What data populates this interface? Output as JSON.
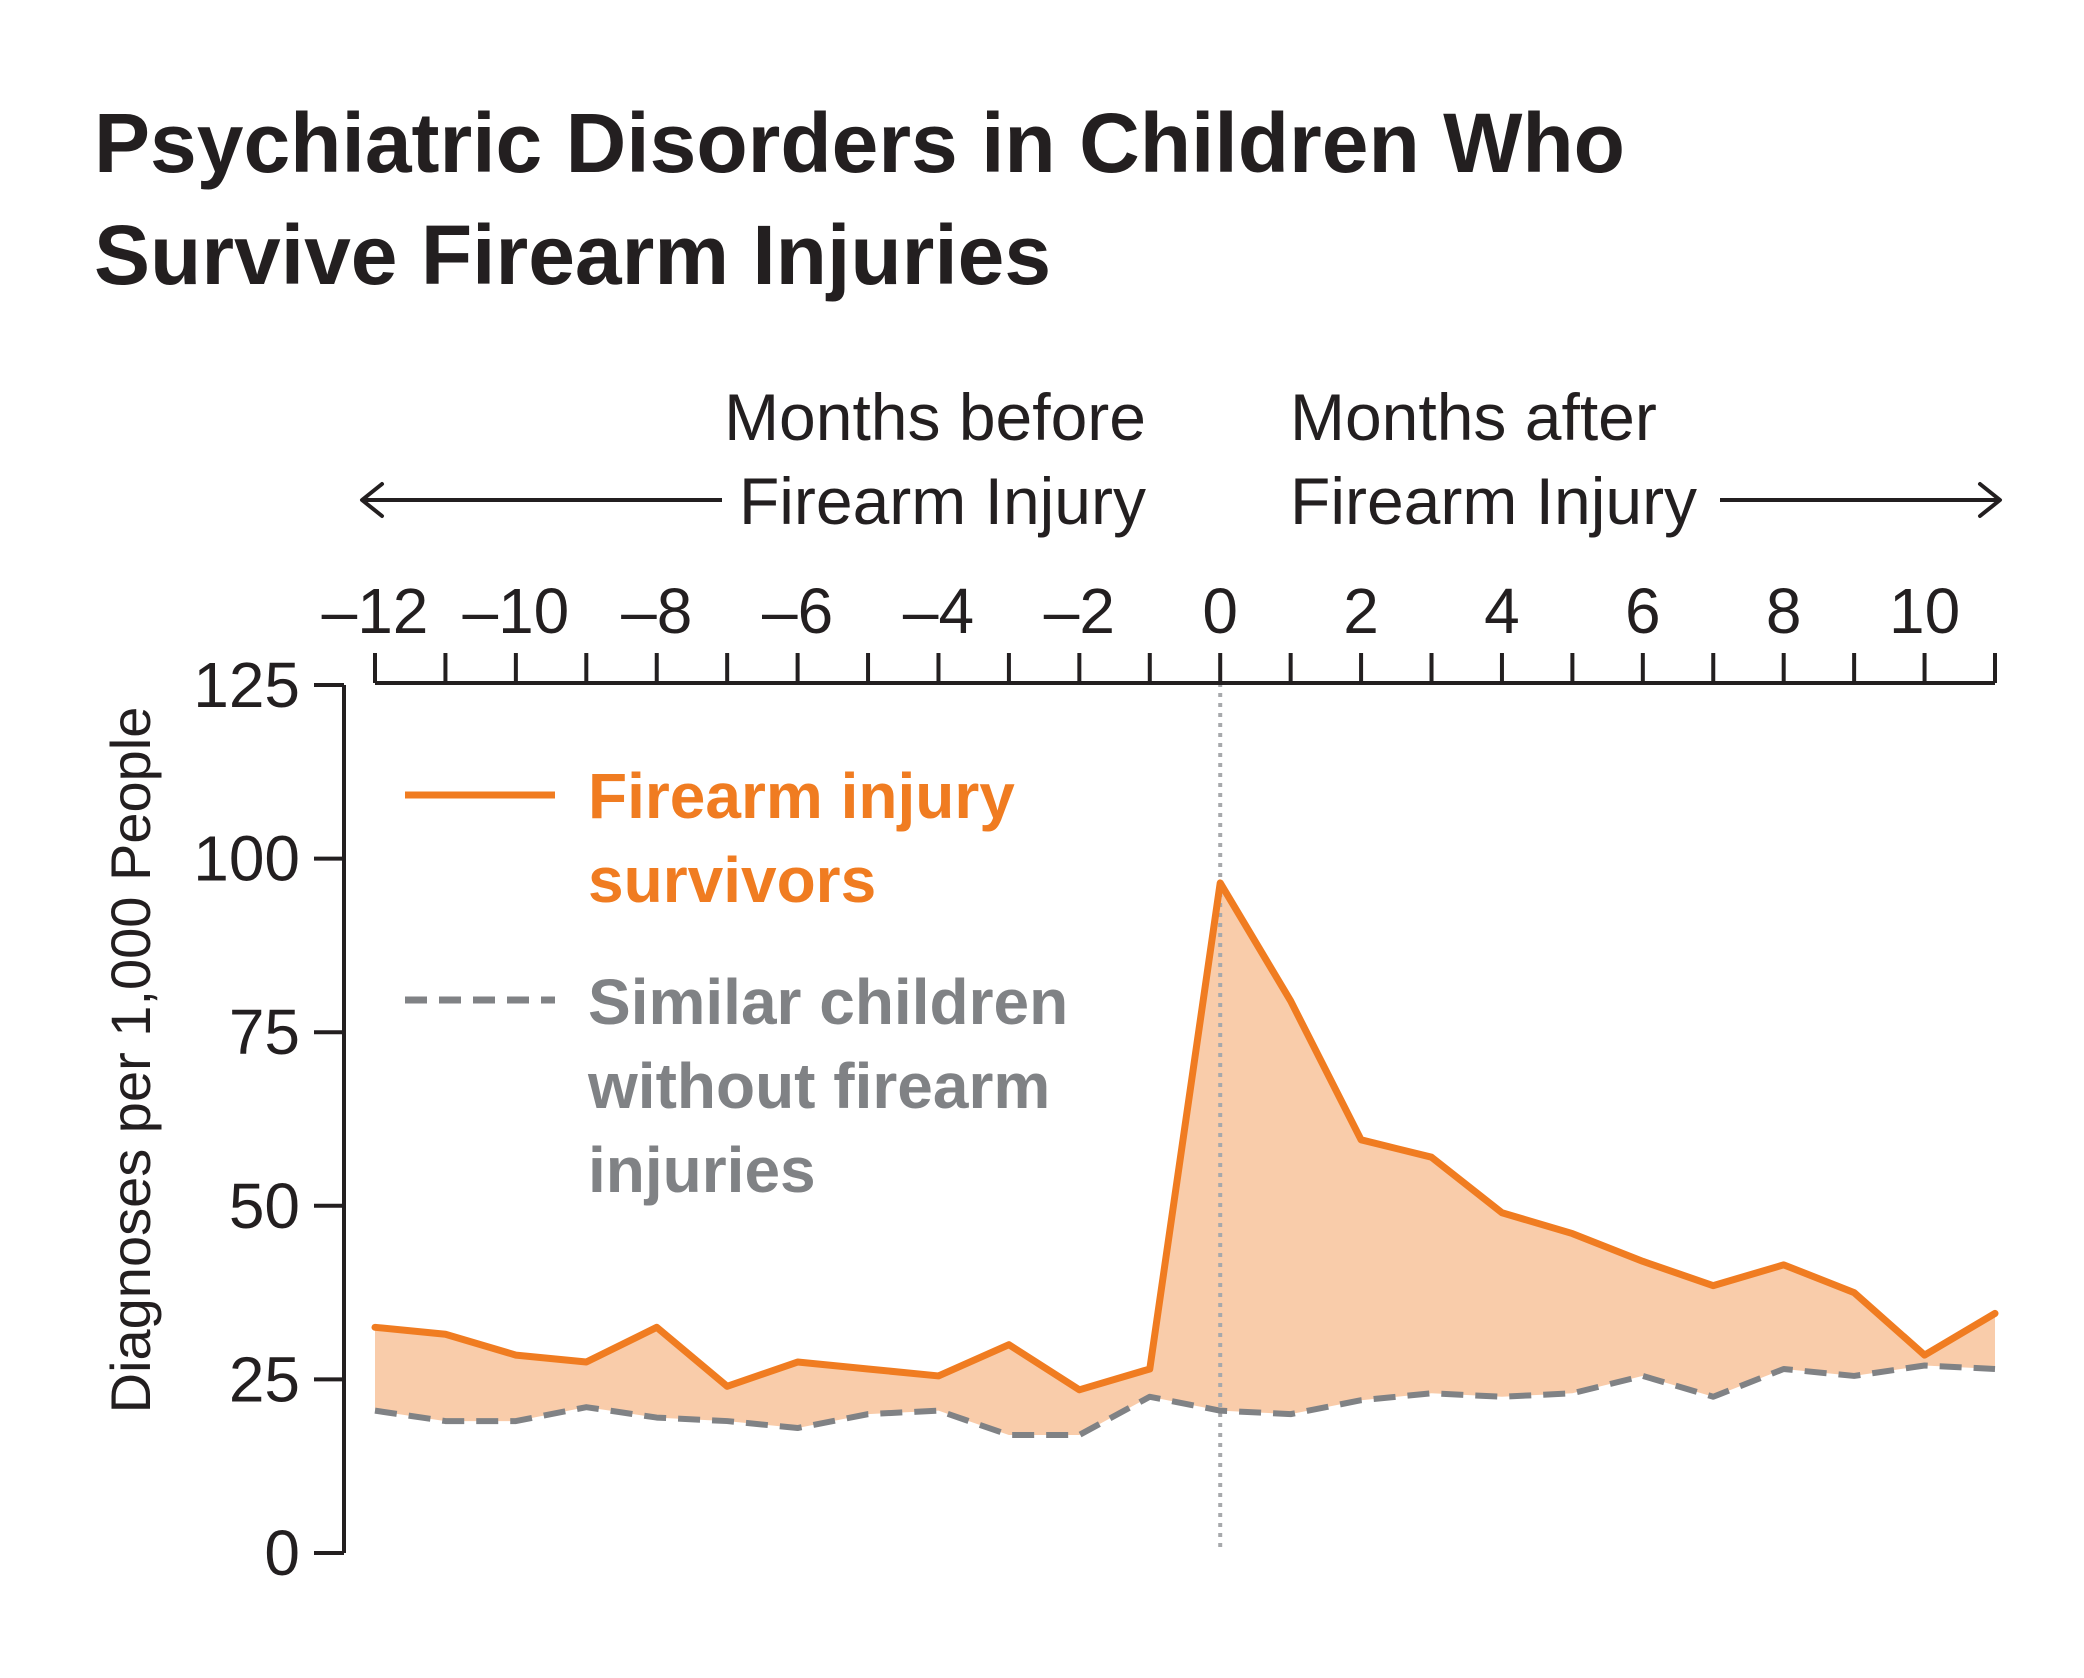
{
  "chart_data": {
    "type": "line",
    "title_lines": [
      "Psychiatric Disorders in Children Who",
      "Survive Firearm Injuries"
    ],
    "x_header_before": [
      "Months before",
      "Firearm Injury"
    ],
    "x_header_after": [
      "Months after",
      "Firearm Injury"
    ],
    "ylabel": "Diagnoses per 1,000 People",
    "xlim": [
      -12,
      11
    ],
    "ylim": [
      0,
      125
    ],
    "x_tick_labels": [
      {
        "value": -12,
        "label": "–12"
      },
      {
        "value": -10,
        "label": "–10"
      },
      {
        "value": -8,
        "label": "–8"
      },
      {
        "value": -6,
        "label": "–6"
      },
      {
        "value": -4,
        "label": "–4"
      },
      {
        "value": -2,
        "label": "–2"
      },
      {
        "value": 0,
        "label": "0"
      },
      {
        "value": 2,
        "label": "2"
      },
      {
        "value": 4,
        "label": "4"
      },
      {
        "value": 6,
        "label": "6"
      },
      {
        "value": 8,
        "label": "8"
      },
      {
        "value": 10,
        "label": "10"
      }
    ],
    "y_tick_labels": [
      {
        "value": 0,
        "label": "0"
      },
      {
        "value": 25,
        "label": "25"
      },
      {
        "value": 50,
        "label": "50"
      },
      {
        "value": 75,
        "label": "75"
      },
      {
        "value": 100,
        "label": "100"
      },
      {
        "value": 125,
        "label": "125"
      }
    ],
    "x": [
      -12,
      -11,
      -10,
      -9,
      -8,
      -7,
      -6,
      -5,
      -4,
      -3,
      -2,
      -1,
      0,
      1,
      2,
      3,
      4,
      5,
      6,
      7,
      8,
      9,
      10,
      11
    ],
    "series": [
      {
        "name_lines": [
          "Firearm injury",
          "survivors"
        ],
        "color": "#f07c21",
        "style": "solid",
        "values": [
          32.5,
          31.5,
          28.5,
          27.5,
          32.5,
          24.0,
          27.5,
          26.5,
          25.5,
          30.0,
          23.5,
          26.5,
          96.5,
          79.5,
          59.5,
          57.0,
          49.0,
          46.0,
          42.0,
          38.5,
          41.5,
          37.5,
          28.5,
          34.5
        ]
      },
      {
        "name_lines": [
          "Similar children",
          "without firearm",
          "injuries"
        ],
        "color": "#808285",
        "style": "dashed",
        "values": [
          20.5,
          19.0,
          19.0,
          21.0,
          19.5,
          19.0,
          18.0,
          20.0,
          20.5,
          17.0,
          17.0,
          22.5,
          20.5,
          20.0,
          22.0,
          23.0,
          22.5,
          23.0,
          25.5,
          22.5,
          26.5,
          25.5,
          27.0,
          26.5
        ]
      }
    ],
    "fill_between_color": "#f9ccaa",
    "reference_line_x": 0,
    "legend_position": "top-left"
  }
}
